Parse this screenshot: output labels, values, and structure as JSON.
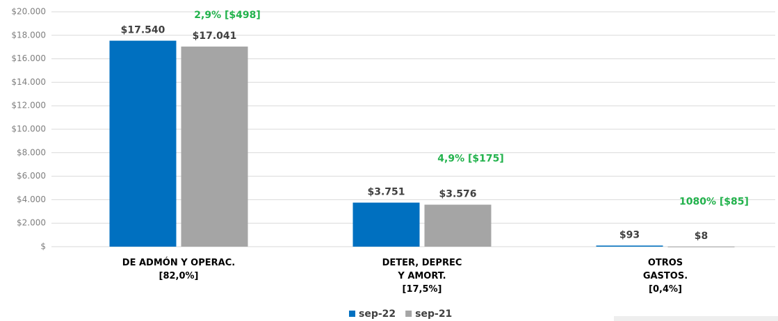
{
  "chart_data": {
    "type": "bar",
    "categories": [
      "DE ADMÓN Y OPERAC.\n[82,0%]",
      "DETER, DEPREC\nY AMORT.\n[17,5%]",
      "OTROS\nGASTOS.\n[0,4%]"
    ],
    "series": [
      {
        "name": "sep-22",
        "color": "#0070c0",
        "values": [
          17540,
          3751,
          93
        ],
        "value_labels": [
          "$17.540",
          "$3.751",
          "$93"
        ]
      },
      {
        "name": "sep-21",
        "color": "#a5a5a5",
        "values": [
          17041,
          3576,
          8
        ],
        "value_labels": [
          "$17.041",
          "$3.576",
          "$8"
        ]
      }
    ],
    "annotations": [
      "2,9% [$498]",
      "4,9% [$175]",
      "1080% [$85]"
    ],
    "ylim": [
      0,
      20000
    ],
    "yticks": [
      {
        "value": 0,
        "label": "$"
      },
      {
        "value": 2000,
        "label": "$2.000"
      },
      {
        "value": 4000,
        "label": "$4.000"
      },
      {
        "value": 6000,
        "label": "$6.000"
      },
      {
        "value": 8000,
        "label": "$8.000"
      },
      {
        "value": 10000,
        "label": "$10.000"
      },
      {
        "value": 12000,
        "label": "$12.000"
      },
      {
        "value": 14000,
        "label": "$14.000"
      },
      {
        "value": 16000,
        "label": "$16.000"
      },
      {
        "value": 18000,
        "label": "$18.000"
      },
      {
        "value": 20000,
        "label": "$20.000"
      }
    ],
    "grid": true,
    "legend": "bottom"
  }
}
